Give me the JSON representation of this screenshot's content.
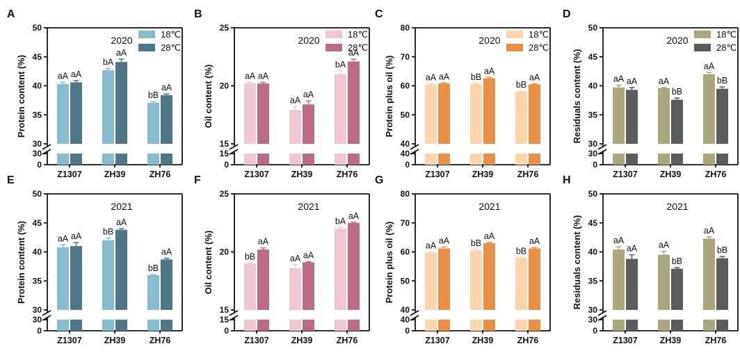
{
  "legend_labels": [
    "18℃",
    "28℃"
  ],
  "chart_data": [
    {
      "id": "A",
      "type": "bar",
      "panel_label": "A",
      "year_label": "2020",
      "ylabel": "Protein content (%)",
      "categories": [
        "Z1307",
        "ZH39",
        "ZH76"
      ],
      "ylim_upper": [
        30,
        50
      ],
      "yticks_upper": [
        30,
        35,
        40,
        45,
        50
      ],
      "ylim_lower": [
        0,
        30
      ],
      "yticks_lower": [
        0,
        30
      ],
      "colors": [
        "#86bccb",
        "#4e7788"
      ],
      "show_legend": true,
      "series": [
        {
          "name": "18℃",
          "values": [
            40.3,
            42.7,
            37.1
          ],
          "errors": [
            0.3,
            0.3,
            0.2
          ],
          "labels": [
            "aA",
            "bA",
            "bB"
          ]
        },
        {
          "name": "28℃",
          "values": [
            40.6,
            44.1,
            38.4
          ],
          "errors": [
            0.3,
            0.5,
            0.2
          ],
          "labels": [
            "aA",
            "aA",
            "aA"
          ]
        }
      ]
    },
    {
      "id": "B",
      "type": "bar",
      "panel_label": "B",
      "year_label": "2020",
      "ylabel": "Oil content (%)",
      "categories": [
        "Z1307",
        "ZH39",
        "ZH76"
      ],
      "ylim_upper": [
        15,
        25
      ],
      "yticks_upper": [
        15,
        20,
        25
      ],
      "ylim_lower": [
        0,
        15
      ],
      "yticks_lower": [
        0,
        15
      ],
      "colors": [
        "#eec7d1",
        "#bb6b84"
      ],
      "show_legend": true,
      "series": [
        {
          "name": "18℃",
          "values": [
            20.2,
            17.9,
            21.0
          ],
          "errors": [
            0.1,
            0.3,
            0.3
          ],
          "labels": [
            "aA",
            "aA",
            "bA"
          ]
        },
        {
          "name": "28℃",
          "values": [
            20.2,
            18.4,
            22.1
          ],
          "errors": [
            0.1,
            0.3,
            0.2
          ],
          "labels": [
            "aA",
            "aA",
            "aA"
          ]
        }
      ]
    },
    {
      "id": "C",
      "type": "bar",
      "panel_label": "C",
      "year_label": "2020",
      "ylabel": "Protein plus oil (%)",
      "categories": [
        "Z1307",
        "ZH39",
        "ZH76"
      ],
      "ylim_upper": [
        40,
        80
      ],
      "yticks_upper": [
        40,
        50,
        60,
        70,
        80
      ],
      "ylim_lower": [
        0,
        40
      ],
      "yticks_lower": [
        0,
        40
      ],
      "colors": [
        "#fbd5ad",
        "#e99047"
      ],
      "show_legend": true,
      "series": [
        {
          "name": "18℃",
          "values": [
            60.5,
            60.6,
            58.1
          ],
          "errors": [
            0.2,
            0.2,
            0.1
          ],
          "labels": [
            "aA",
            "bB",
            "bB"
          ]
        },
        {
          "name": "28℃",
          "values": [
            60.8,
            62.6,
            60.5
          ],
          "errors": [
            0.2,
            0.3,
            0.2
          ],
          "labels": [
            "aA",
            "aA",
            "aA"
          ]
        }
      ]
    },
    {
      "id": "D",
      "type": "bar",
      "panel_label": "D",
      "year_label": "2020",
      "ylabel": "Residuals content (%)",
      "categories": [
        "Z1307",
        "ZH39",
        "ZH76"
      ],
      "ylim_upper": [
        30,
        50
      ],
      "yticks_upper": [
        30,
        35,
        40,
        45,
        50
      ],
      "ylim_lower": [
        0,
        30
      ],
      "yticks_lower": [
        0,
        30
      ],
      "colors": [
        "#aca67c",
        "#5c5c5c"
      ],
      "show_legend": true,
      "series": [
        {
          "name": "18℃",
          "values": [
            39.7,
            39.6,
            42.0
          ],
          "errors": [
            0.4,
            0.1,
            0.3
          ],
          "labels": [
            "aA",
            "aA",
            "aA"
          ]
        },
        {
          "name": "28℃",
          "values": [
            39.3,
            37.6,
            39.5
          ],
          "errors": [
            0.4,
            0.3,
            0.3
          ],
          "labels": [
            "aA",
            "bB",
            "bB"
          ]
        }
      ]
    },
    {
      "id": "E",
      "type": "bar",
      "panel_label": "E",
      "year_label": "2021",
      "ylabel": "Protein content (%)",
      "categories": [
        "Z1307",
        "ZH39",
        "ZH76"
      ],
      "ylim_upper": [
        30,
        50
      ],
      "yticks_upper": [
        30,
        35,
        40,
        45,
        50
      ],
      "ylim_lower": [
        0,
        30
      ],
      "yticks_lower": [
        0,
        30
      ],
      "colors": [
        "#86bccb",
        "#4e7788"
      ],
      "show_legend": false,
      "series": [
        {
          "name": "18℃",
          "values": [
            40.8,
            42.0,
            36.0
          ],
          "errors": [
            0.4,
            0.4,
            0.1
          ],
          "labels": [
            "aA",
            "bB",
            "bB"
          ]
        },
        {
          "name": "28℃",
          "values": [
            41.0,
            43.8,
            38.7
          ],
          "errors": [
            0.6,
            0.2,
            0.2
          ],
          "labels": [
            "aA",
            "aA",
            "aA"
          ]
        }
      ]
    },
    {
      "id": "F",
      "type": "bar",
      "panel_label": "F",
      "year_label": "2021",
      "ylabel": "Oil content (%)",
      "categories": [
        "Z1307",
        "ZH39",
        "ZH76"
      ],
      "ylim_upper": [
        15,
        25
      ],
      "yticks_upper": [
        15,
        20,
        25
      ],
      "ylim_lower": [
        0,
        15
      ],
      "yticks_lower": [
        0,
        15
      ],
      "colors": [
        "#eec7d1",
        "#bb6b84"
      ],
      "show_legend": false,
      "series": [
        {
          "name": "18℃",
          "values": [
            19.0,
            18.6,
            22.0
          ],
          "errors": [
            0.05,
            0.3,
            0.1
          ],
          "labels": [
            "bB",
            "aA",
            "bA"
          ]
        },
        {
          "name": "28℃",
          "values": [
            20.2,
            19.1,
            22.5
          ],
          "errors": [
            0.15,
            0.05,
            0.05
          ],
          "labels": [
            "aA",
            "aA",
            "aA"
          ]
        }
      ]
    },
    {
      "id": "G",
      "type": "bar",
      "panel_label": "G",
      "year_label": "2021",
      "ylabel": "Protein plus oil (%)",
      "categories": [
        "Z1307",
        "ZH39",
        "ZH76"
      ],
      "ylim_upper": [
        40,
        80
      ],
      "yticks_upper": [
        40,
        50,
        60,
        70,
        80
      ],
      "ylim_lower": [
        0,
        40
      ],
      "yticks_lower": [
        0,
        40
      ],
      "colors": [
        "#fbd5ad",
        "#e99047"
      ],
      "show_legend": false,
      "series": [
        {
          "name": "18℃",
          "values": [
            59.8,
            60.5,
            58.0
          ],
          "errors": [
            0.2,
            0.3,
            0.1
          ],
          "labels": [
            "aA",
            "bB",
            "bB"
          ]
        },
        {
          "name": "28℃",
          "values": [
            61.2,
            63.0,
            61.2
          ],
          "errors": [
            0.5,
            0.2,
            0.3
          ],
          "labels": [
            "aA",
            "aA",
            "aA"
          ]
        }
      ]
    },
    {
      "id": "H",
      "type": "bar",
      "panel_label": "H",
      "year_label": "2021",
      "ylabel": "Residuals content (%)",
      "categories": [
        "Z1307",
        "ZH39",
        "ZH76"
      ],
      "ylim_upper": [
        30,
        50
      ],
      "yticks_upper": [
        30,
        35,
        40,
        45,
        50
      ],
      "ylim_lower": [
        0,
        30
      ],
      "yticks_lower": [
        0,
        30
      ],
      "colors": [
        "#aca67c",
        "#5c5c5c"
      ],
      "show_legend": false,
      "series": [
        {
          "name": "18℃",
          "values": [
            40.4,
            39.5,
            42.3
          ],
          "errors": [
            0.5,
            0.6,
            0.3
          ],
          "labels": [
            "aA",
            "aA",
            "aA"
          ]
        },
        {
          "name": "28℃",
          "values": [
            38.8,
            37.1,
            38.9
          ],
          "errors": [
            0.7,
            0.2,
            0.3
          ],
          "labels": [
            "aA",
            "bB",
            "bB"
          ]
        }
      ]
    }
  ]
}
